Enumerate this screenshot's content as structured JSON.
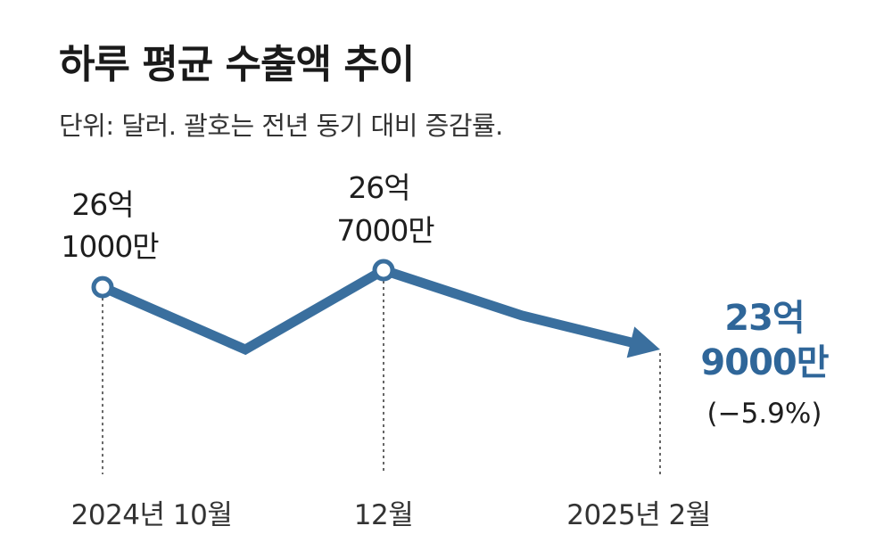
{
  "title": "하루 평균 수출액 추이",
  "subtitle": "단위: 달러. 괄호는 전년 동기 대비 증감률.",
  "colors": {
    "line": "#3a6f9e",
    "highlight": "#2f6699",
    "guide": "#333333"
  },
  "chart_data": {
    "type": "line",
    "x": [
      "2024-10",
      "2024-11",
      "2024-12",
      "2025-01",
      "2025-02"
    ],
    "values": [
      26.1,
      23.9,
      26.7,
      25.1,
      23.9
    ],
    "unit": "억 달러",
    "ylim": [
      20,
      28
    ],
    "tick_labels": [
      "2024년 10월",
      "12월",
      "2025년 2월"
    ],
    "data_labels": [
      {
        "lines": [
          "26억",
          "1000만"
        ]
      },
      {
        "lines": [
          "26억",
          "7000만"
        ]
      },
      {
        "lines": [
          "23억",
          "9000만"
        ],
        "change": "(−5.9%)",
        "highlight": true
      }
    ],
    "grid": false,
    "legend": "none"
  }
}
